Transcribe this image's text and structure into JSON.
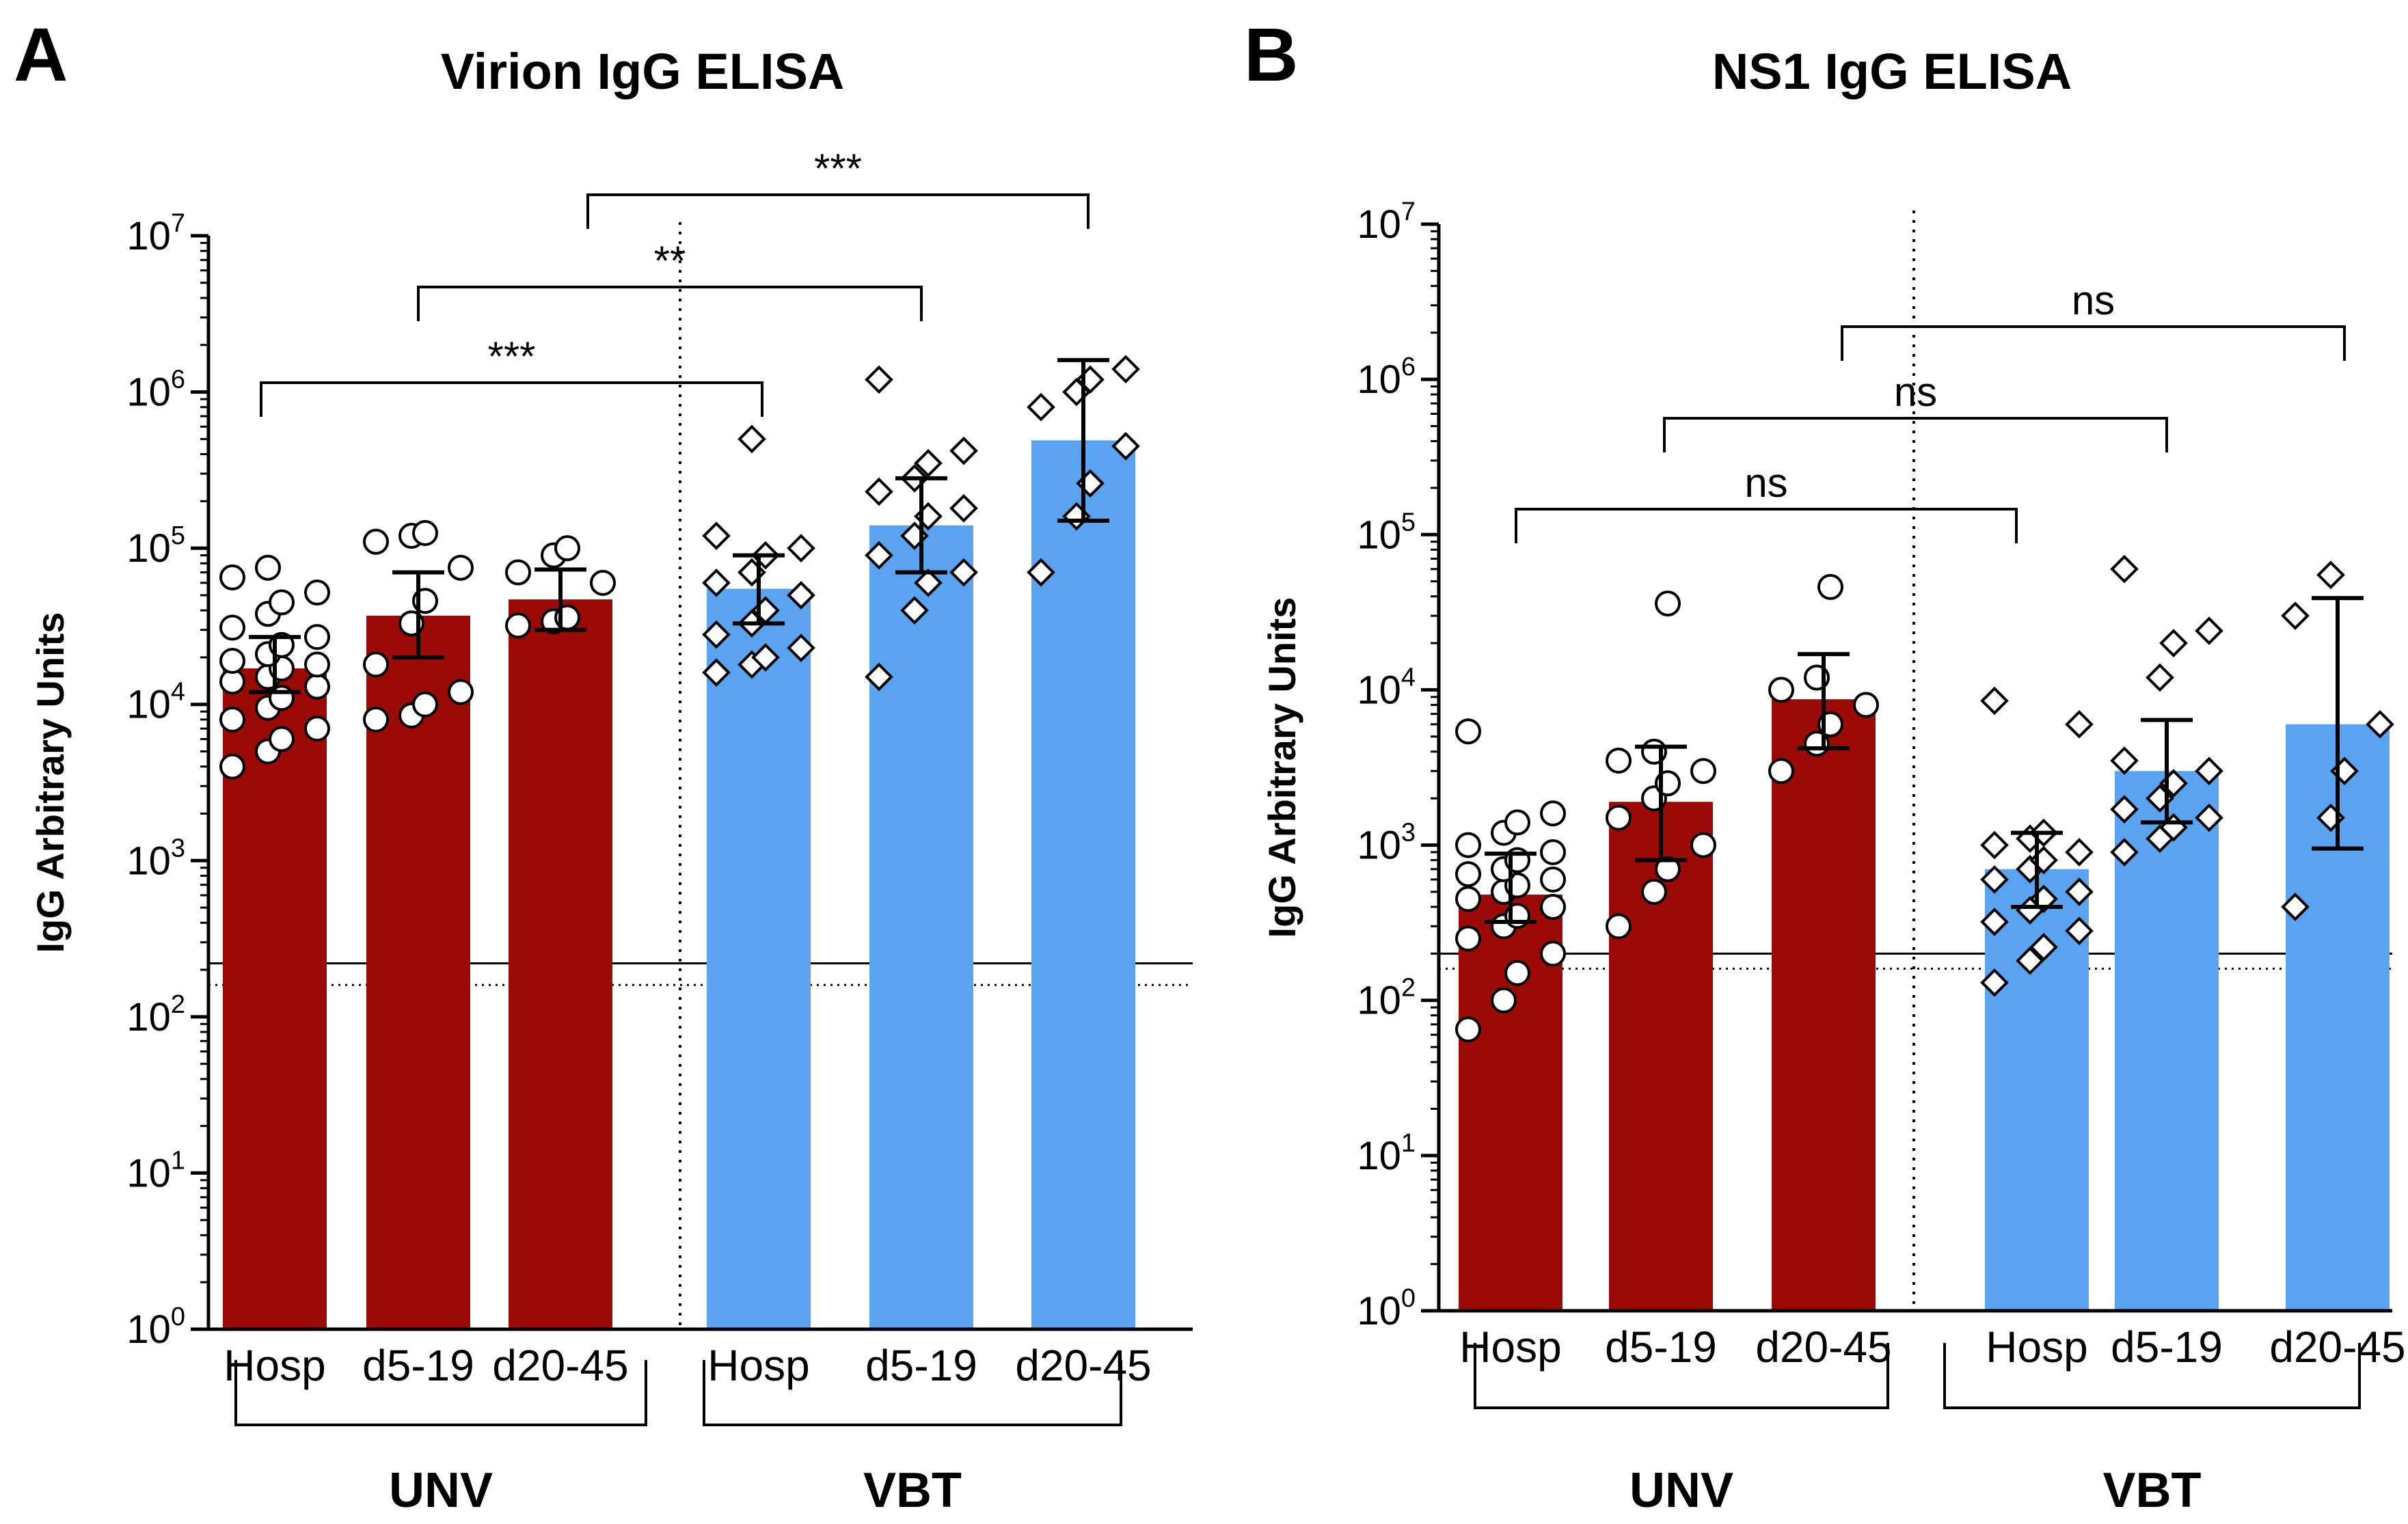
{
  "chart_data": [
    {
      "panel_letter": "A",
      "type": "bar",
      "title": "Virion IgG ELISA",
      "ylabel": "IgG Arbitrary Units",
      "yscale": "log",
      "ylim": [
        1,
        10000000
      ],
      "yticks": [
        {
          "base": "10",
          "exp": "0"
        },
        {
          "base": "10",
          "exp": "1"
        },
        {
          "base": "10",
          "exp": "2"
        },
        {
          "base": "10",
          "exp": "3"
        },
        {
          "base": "10",
          "exp": "4"
        },
        {
          "base": "10",
          "exp": "5"
        },
        {
          "base": "10",
          "exp": "6"
        },
        {
          "base": "10",
          "exp": "7"
        }
      ],
      "categories": [
        "Hosp",
        "d5-19",
        "d20-45",
        "Hosp",
        "d5-19",
        "d20-45"
      ],
      "groups": [
        {
          "label": "UNV",
          "from": 0,
          "to": 2
        },
        {
          "label": "VBT",
          "from": 3,
          "to": 5
        }
      ],
      "colors": {
        "UNV": "#9b0a06",
        "VBT": "#5aa3f0"
      },
      "marker": {
        "UNV": "circle",
        "VBT": "diamond"
      },
      "values": [
        17000,
        37000,
        47000,
        55000,
        140000,
        490000
      ],
      "error": [
        [
          12000,
          27000
        ],
        [
          20000,
          70000
        ],
        [
          30000,
          73000
        ],
        [
          33000,
          90000
        ],
        [
          70000,
          280000
        ],
        [
          150000,
          1600000
        ]
      ],
      "points": [
        [
          4000,
          5000,
          6000,
          7000,
          8000,
          9500,
          11000,
          13000,
          14000,
          15000,
          17000,
          18000,
          19000,
          21000,
          24000,
          27000,
          31000,
          38000,
          45000,
          52000,
          65000,
          75000
        ],
        [
          8000,
          8500,
          10000,
          12000,
          18000,
          33000,
          46000,
          75000,
          110000,
          120000,
          125000
        ],
        [
          32000,
          34000,
          36000,
          60000,
          70000,
          90000,
          100000
        ],
        [
          16000,
          18000,
          20000,
          23000,
          28000,
          33000,
          40000,
          50000,
          60000,
          70000,
          90000,
          100000,
          120000,
          500000
        ],
        [
          15000,
          40000,
          60000,
          70000,
          90000,
          120000,
          160000,
          180000,
          230000,
          280000,
          350000,
          420000,
          1200000
        ],
        [
          70000,
          160000,
          260000,
          450000,
          800000,
          1000000,
          1200000,
          1400000
        ]
      ],
      "reference_lines": {
        "solid": 220,
        "dotted": 160
      },
      "comparisons": [
        {
          "from": 0,
          "to": 3,
          "label": "***"
        },
        {
          "from": 1,
          "to": 4,
          "label": "**"
        },
        {
          "from": 2,
          "to": 5,
          "label": "***"
        }
      ]
    },
    {
      "panel_letter": "B",
      "type": "bar",
      "title": "NS1 IgG ELISA",
      "ylabel": "IgG Arbitrary Units",
      "yscale": "log",
      "ylim": [
        1,
        10000000
      ],
      "yticks": [
        {
          "base": "10",
          "exp": "0"
        },
        {
          "base": "10",
          "exp": "1"
        },
        {
          "base": "10",
          "exp": "2"
        },
        {
          "base": "10",
          "exp": "3"
        },
        {
          "base": "10",
          "exp": "4"
        },
        {
          "base": "10",
          "exp": "5"
        },
        {
          "base": "10",
          "exp": "6"
        },
        {
          "base": "10",
          "exp": "7"
        }
      ],
      "categories": [
        "Hosp",
        "d5-19",
        "d20-45",
        "Hosp",
        "d5-19",
        "d20-45"
      ],
      "groups": [
        {
          "label": "UNV",
          "from": 0,
          "to": 2
        },
        {
          "label": "VBT",
          "from": 3,
          "to": 5
        }
      ],
      "colors": {
        "UNV": "#9b0a06",
        "VBT": "#5aa3f0"
      },
      "marker": {
        "UNV": "circle",
        "VBT": "diamond"
      },
      "values": [
        480,
        1900,
        8700,
        700,
        3000,
        6000
      ],
      "error": [
        [
          320,
          880
        ],
        [
          800,
          4300
        ],
        [
          4200,
          17000
        ],
        [
          400,
          1200
        ],
        [
          1400,
          6400
        ],
        [
          950,
          39000
        ]
      ],
      "points": [
        [
          65,
          100,
          150,
          200,
          250,
          300,
          350,
          400,
          450,
          500,
          550,
          600,
          650,
          700,
          800,
          900,
          1000,
          1200,
          1400,
          1600,
          5400
        ],
        [
          300,
          500,
          700,
          1000,
          1500,
          2000,
          2500,
          3000,
          3500,
          4000,
          36000
        ],
        [
          3000,
          4500,
          6000,
          8000,
          10000,
          12000,
          46000
        ],
        [
          130,
          180,
          220,
          280,
          320,
          380,
          450,
          500,
          600,
          700,
          800,
          900,
          1000,
          1100,
          1200,
          6000,
          8500
        ],
        [
          900,
          1100,
          1300,
          1500,
          1700,
          2000,
          2500,
          3000,
          3500,
          12000,
          20000,
          24000,
          60000
        ],
        [
          400,
          1500,
          3000,
          6000,
          30000,
          55000
        ]
      ],
      "reference_lines": {
        "solid": 200,
        "dotted": 160
      },
      "comparisons": [
        {
          "from": 0,
          "to": 3,
          "label": "ns"
        },
        {
          "from": 1,
          "to": 4,
          "label": "ns"
        },
        {
          "from": 2,
          "to": 5,
          "label": "ns"
        }
      ]
    }
  ]
}
